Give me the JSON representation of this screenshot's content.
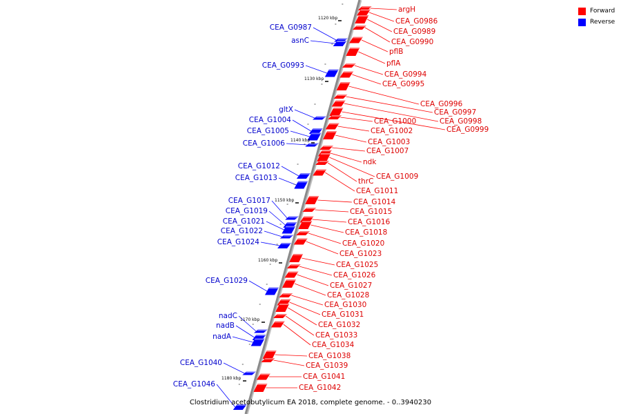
{
  "caption": "Clostridium acetobutylicum EA 2018, complete genome. - 0..3940230",
  "legend": {
    "forward_label": "Forward",
    "reverse_label": "Reverse"
  },
  "colors": {
    "forward": "#ff0000",
    "forward_text": "#dd0000",
    "reverse": "#0000ff",
    "reverse_text": "#0000cc",
    "backbone": "#8a8a8a"
  },
  "ticks": [
    "1120 kbp",
    "1130 kbp",
    "1140 kbp",
    "1150 kbp",
    "1160 kbp",
    "1170 kbp",
    "1180 kbp"
  ],
  "forward_genes": [
    "argH",
    "CEA_G0986",
    "CEA_G0989",
    "CEA_G0990",
    "pflB",
    "pflA",
    "CEA_G0994",
    "CEA_G0995",
    "CEA_G0996",
    "CEA_G0997",
    "CEA_G0998",
    "CEA_G0999",
    "CEA_G1000",
    "CEA_G1002",
    "CEA_G1003",
    "CEA_G1007",
    "ndk",
    "CEA_G1009",
    "thrC",
    "CEA_G1011",
    "CEA_G1014",
    "CEA_G1015",
    "CEA_G1016",
    "CEA_G1018",
    "CEA_G1020",
    "CEA_G1023",
    "CEA_G1025",
    "CEA_G1026",
    "CEA_G1027",
    "CEA_G1028",
    "CEA_G1030",
    "CEA_G1031",
    "CEA_G1032",
    "CEA_G1033",
    "CEA_G1034",
    "CEA_G1038",
    "CEA_G1039",
    "CEA_G1041",
    "CEA_G1042"
  ],
  "reverse_genes": [
    "CEA_G0987",
    "asnC",
    "CEA_G0993",
    "gltX",
    "CEA_G1004",
    "CEA_G1005",
    "CEA_G1006",
    "CEA_G1012",
    "CEA_G1013",
    "CEA_G1017",
    "CEA_G1019",
    "CEA_G1021",
    "CEA_G1022",
    "CEA_G1024",
    "CEA_G1029",
    "nadC",
    "nadB",
    "nadA",
    "CEA_G1040",
    "CEA_G1046"
  ]
}
